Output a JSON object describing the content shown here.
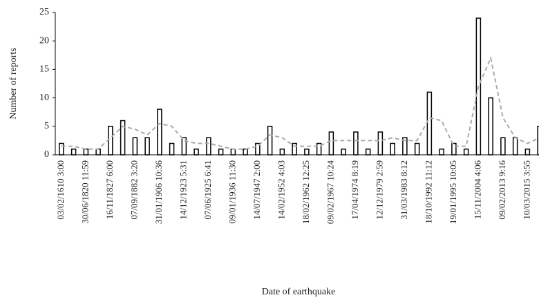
{
  "chart_data": {
    "type": "bar",
    "x_label": "Date of earthquake",
    "y_label": "Number of reports",
    "categories": [
      "03/02/1610 3:00",
      null,
      "30/06/1820 11:59",
      null,
      "16/11/1827 6:00",
      null,
      "07/09/1882 3:20",
      null,
      "31/01/1906 10:36",
      null,
      "14/12/1923 5:31",
      null,
      "07/06/1925 6:41",
      null,
      "09/01/1936 11:30",
      null,
      "14/07/1947 2:00",
      null,
      "14/02/1952 4:03",
      null,
      "18/02/1962 12:25",
      null,
      "09/02/1967 10:24",
      null,
      "17/04/1974 8:19",
      null,
      "12/12/1979 2:59",
      null,
      "31/03/1983 8:12",
      null,
      "18/10/1992 11:12",
      null,
      "19/01/1995 10:05",
      null,
      "15/11/2004 4:06",
      null,
      "09/02/2013 9:16",
      null,
      "10/03/2015 3:55",
      null
    ],
    "series": [
      {
        "type": "bar",
        "color": "#000000",
        "values": [
          2,
          1,
          1,
          1,
          5,
          6,
          3,
          3,
          8,
          2,
          3,
          1,
          3,
          1,
          1,
          1,
          2,
          5,
          1,
          2,
          1,
          2,
          4,
          1,
          4,
          1,
          4,
          2,
          3,
          2,
          11,
          1,
          2,
          1,
          24,
          10,
          3,
          3,
          1,
          5
        ]
      },
      {
        "type": "line",
        "color": "#aaaaaa",
        "dashed": true,
        "values": [
          1.5,
          1.5,
          1,
          1,
          3,
          5,
          4.5,
          3.5,
          5.5,
          5,
          2.5,
          2,
          2,
          1.5,
          1,
          1,
          1.5,
          3.5,
          3,
          1.5,
          1.5,
          1.5,
          2.5,
          2.5,
          2.5,
          2.5,
          2.5,
          3,
          2.5,
          2.5,
          6.5,
          6,
          1.5,
          1.5,
          12,
          17,
          6.5,
          3,
          2,
          3
        ]
      }
    ],
    "ylim": [
      0,
      25
    ],
    "yticks": [
      0,
      5,
      10,
      15,
      20,
      25
    ]
  }
}
